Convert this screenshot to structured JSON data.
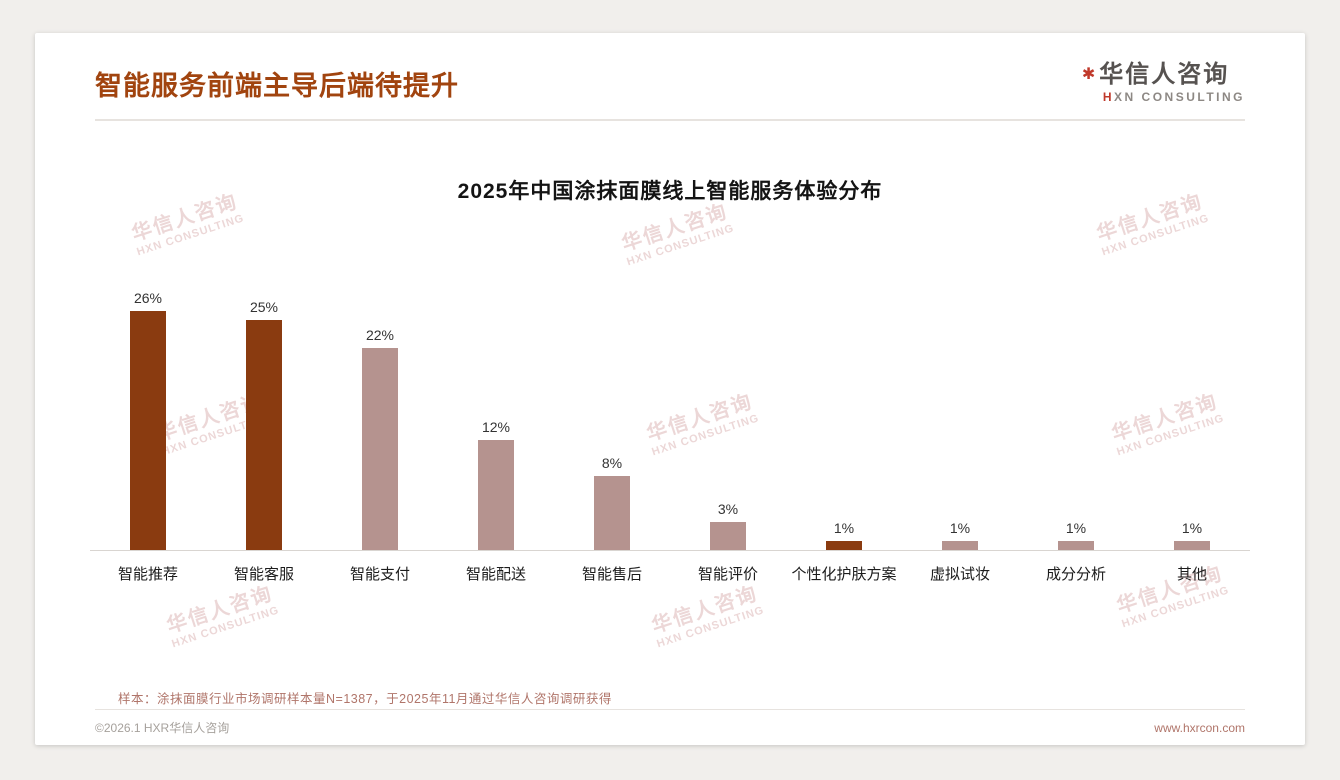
{
  "page_title": "智能服务前端主导后端待提升",
  "logo": {
    "mark": "✱",
    "name": "华信人咨询",
    "sub_h": "H",
    "sub_rest": "XN CONSULTING"
  },
  "watermark": {
    "line1": "华信人咨询",
    "line2": "HXN CONSULTING"
  },
  "chart_data": {
    "type": "bar",
    "title": "2025年中国涂抹面膜线上智能服务体验分布",
    "categories": [
      "智能推荐",
      "智能客服",
      "智能支付",
      "智能配送",
      "智能售后",
      "智能评价",
      "个性化护肤方案",
      "虚拟试妆",
      "成分分析",
      "其他"
    ],
    "values": [
      26,
      25,
      22,
      12,
      8,
      3,
      1,
      1,
      1,
      1
    ],
    "value_labels": [
      "26%",
      "25%",
      "22%",
      "12%",
      "8%",
      "3%",
      "1%",
      "1%",
      "1%",
      "1%"
    ],
    "bar_colors": [
      "#8a3b10",
      "#8a3b10",
      "#b5938f",
      "#b5938f",
      "#b5938f",
      "#b5938f",
      "#8a3b10",
      "#b5938f",
      "#b5938f",
      "#b5938f"
    ],
    "colors": {
      "emphasis": "#8a3b10",
      "normal": "#b5938f"
    },
    "xlabel": "",
    "ylabel": "",
    "ylim": [
      0,
      28
    ],
    "grid": false,
    "legend": false
  },
  "footnote": "样本：涂抹面膜行业市场调研样本量N=1387，于2025年11月通过华信人咨询调研获得",
  "footer": {
    "copyright": "©2026.1 HXR华信人咨询",
    "website": "www.hxrcon.com"
  }
}
